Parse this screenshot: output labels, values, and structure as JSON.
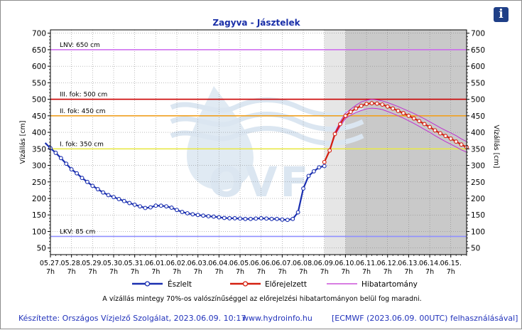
{
  "title": "Zagyva - Jásztelek",
  "info_icon": "info-icon",
  "chart_data": {
    "type": "line",
    "ylabel_left": "Vízállás [cm]",
    "ylabel_right": "Vízállás [cm]",
    "ylim": [
      30,
      710
    ],
    "yticks": [
      50,
      100,
      150,
      200,
      250,
      300,
      350,
      400,
      450,
      500,
      550,
      600,
      650,
      700
    ],
    "xlim": [
      0,
      19.75
    ],
    "xtick_dates": [
      "05.27.",
      "05.28.",
      "05.29.",
      "05.30.",
      "05.31.",
      "06.01.",
      "06.02.",
      "06.03.",
      "06.04.",
      "06.05.",
      "06.06.",
      "06.07.",
      "06.08.",
      "06.09.",
      "06.10.",
      "06.11.",
      "06.12.",
      "06.13.",
      "06.14.",
      "06.15."
    ],
    "xtick_hour": "7h",
    "x_unit": "days from 05.27. 7h",
    "grid": true,
    "reference_lines": [
      {
        "label": "LNV: 650 cm",
        "value": 650,
        "color": "#cc66ee"
      },
      {
        "label": "III. fok: 500 cm",
        "value": 500,
        "color": "#cc0000"
      },
      {
        "label": "II. fok: 450 cm",
        "value": 450,
        "color": "#f0a020"
      },
      {
        "label": "I. fok: 350 cm",
        "value": 350,
        "color": "#e8e84a"
      },
      {
        "label": "LKV: 85 cm",
        "value": 85,
        "color": "#9090ff"
      }
    ],
    "forecast_start_x": 13,
    "ensemble_start_x": 14,
    "legend_position": "bottom",
    "series": [
      {
        "name": "Észlelt",
        "color": "#1a2fb0",
        "x": [
          -0.25,
          0,
          0.25,
          0.5,
          0.75,
          1,
          1.25,
          1.5,
          1.75,
          2,
          2.25,
          2.5,
          2.75,
          3,
          3.25,
          3.5,
          3.75,
          4,
          4.25,
          4.5,
          4.75,
          5,
          5.25,
          5.5,
          5.75,
          6,
          6.25,
          6.5,
          6.75,
          7,
          7.25,
          7.5,
          7.75,
          8,
          8.25,
          8.5,
          8.75,
          9,
          9.25,
          9.5,
          9.75,
          10,
          10.25,
          10.5,
          10.75,
          11,
          11.25,
          11.5,
          11.75,
          12,
          12.25,
          12.5,
          12.75,
          13
        ],
        "y": [
          368,
          352,
          338,
          322,
          305,
          288,
          276,
          262,
          250,
          238,
          228,
          218,
          210,
          204,
          198,
          192,
          186,
          181,
          176,
          171,
          173,
          178,
          178,
          176,
          172,
          165,
          159,
          155,
          152,
          150,
          148,
          146,
          145,
          143,
          141,
          140,
          140,
          139,
          138,
          138,
          139,
          140,
          139,
          138,
          138,
          136,
          135,
          138,
          158,
          230,
          268,
          282,
          294,
          298
        ]
      },
      {
        "name": "Előrejelzett",
        "color": "#d42010",
        "x": [
          13,
          13.25,
          13.5,
          13.75,
          14,
          14.25,
          14.5,
          14.75,
          15,
          15.25,
          15.5,
          15.75,
          16,
          16.25,
          16.5,
          16.75,
          17,
          17.25,
          17.5,
          17.75,
          18,
          18.25,
          18.5,
          18.75,
          19,
          19.25,
          19.5,
          19.75
        ],
        "y": [
          310,
          345,
          395,
          425,
          450,
          462,
          472,
          480,
          486,
          488,
          487,
          484,
          478,
          472,
          465,
          458,
          450,
          442,
          434,
          425,
          416,
          406,
          397,
          389,
          381,
          372,
          363,
          355
        ]
      },
      {
        "name": "Hibatartomány",
        "color": "#c030d0",
        "upper": [
          310,
          348,
          400,
          432,
          458,
          470,
          482,
          492,
          497,
          500,
          498,
          495,
          490,
          484,
          478,
          471,
          464,
          457,
          449,
          441,
          432,
          423,
          414,
          406,
          398,
          390,
          380,
          372
        ],
        "lower": [
          310,
          342,
          390,
          418,
          442,
          452,
          460,
          466,
          471,
          473,
          472,
          469,
          463,
          457,
          450,
          443,
          435,
          427,
          418,
          409,
          400,
          390,
          381,
          372,
          364,
          356,
          347,
          340
        ]
      }
    ]
  },
  "legend": {
    "observed": "Észlelt",
    "forecast": "Előrejelzett",
    "range": "Hibatartomány"
  },
  "note": "A vízállás mintegy 70%-os valószínűséggel az előrejelzési hibatartományon belül fog maradni.",
  "watermark": "OVF",
  "footer": {
    "author": "Készítette: Országos Vízjelző Szolgálat, 2023.06.09. 10:17",
    "website": "www.hydroinfo.hu",
    "source": "[ECMWF (2023.06.09. 00UTC) felhasználásával]"
  }
}
